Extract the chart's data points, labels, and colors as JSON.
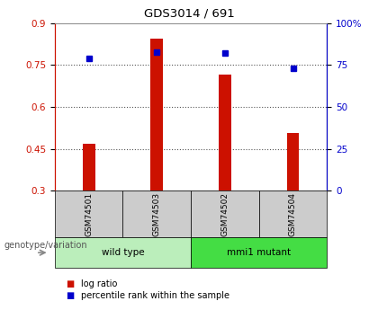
{
  "title": "GDS3014 / 691",
  "samples": [
    "GSM74501",
    "GSM74503",
    "GSM74502",
    "GSM74504"
  ],
  "log_ratios": [
    0.468,
    0.845,
    0.717,
    0.508
  ],
  "percentile_ranks": [
    79,
    83,
    82,
    73
  ],
  "groups": [
    {
      "label": "wild type",
      "samples": [
        0,
        1
      ],
      "color": "#bbeebb"
    },
    {
      "label": "mmi1 mutant",
      "samples": [
        2,
        3
      ],
      "color": "#44dd44"
    }
  ],
  "ylim_left": [
    0.3,
    0.9
  ],
  "ylim_right": [
    0,
    100
  ],
  "yticks_left": [
    0.3,
    0.45,
    0.6,
    0.75,
    0.9
  ],
  "yticks_right": [
    0,
    25,
    50,
    75,
    100
  ],
  "bar_color": "#cc1100",
  "dot_color": "#0000cc",
  "bg_color": "#ffffff",
  "plot_bg": "#ffffff",
  "legend_items": [
    "log ratio",
    "percentile rank within the sample"
  ],
  "genotype_label": "genotype/variation",
  "sample_box_color": "#cccccc",
  "dotted_line_color": "#555555"
}
